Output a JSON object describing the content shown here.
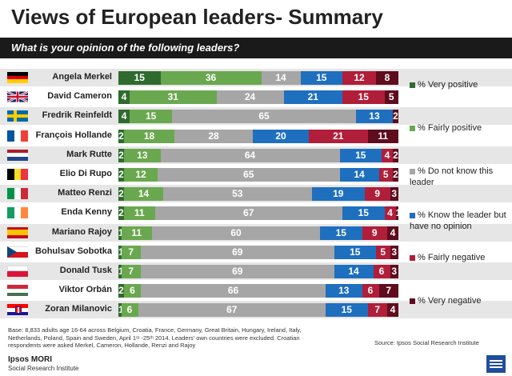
{
  "title": "Views of European leaders- Summary",
  "subtitle": "What is your opinion of the following leaders?",
  "chart_data": {
    "type": "bar",
    "stacked": true,
    "orientation": "horizontal",
    "categories": [
      "Angela Merkel",
      "David Cameron",
      "Fredrik Reinfeldt",
      "François Hollande",
      "Mark Rutte",
      "Elio Di Rupo",
      "Matteo Renzi",
      "Enda Kenny",
      "Mariano Rajoy",
      "Bohulsav Sobotka",
      "Donald Tusk",
      "Viktor Orbán",
      "Zoran Milanovic"
    ],
    "series": [
      {
        "name": "% Very positive",
        "color": "#2f6b2f",
        "values": [
          15,
          4,
          4,
          2,
          2,
          2,
          2,
          2,
          1,
          1,
          1,
          2,
          1
        ]
      },
      {
        "name": "% Fairly positive",
        "color": "#6aa84f",
        "values": [
          36,
          31,
          15,
          18,
          13,
          12,
          14,
          11,
          11,
          7,
          7,
          6,
          6
        ]
      },
      {
        "name": "% Do not know this leader",
        "color": "#a6a6a6",
        "values": [
          14,
          24,
          65,
          28,
          64,
          65,
          53,
          67,
          60,
          69,
          69,
          66,
          67
        ]
      },
      {
        "name": "% Know the leader but have no opinion",
        "color": "#1f6fbf",
        "values": [
          15,
          21,
          13,
          20,
          15,
          14,
          19,
          15,
          15,
          15,
          14,
          13,
          15
        ]
      },
      {
        "name": "% Fairly negative",
        "color": "#b01e3a",
        "values": [
          12,
          15,
          0,
          21,
          4,
          5,
          9,
          4,
          9,
          5,
          6,
          6,
          7
        ]
      },
      {
        "name": "% Very negative",
        "color": "#5e0c1e",
        "values": [
          8,
          5,
          2,
          11,
          2,
          2,
          3,
          1,
          4,
          3,
          3,
          7,
          4
        ]
      }
    ],
    "labels": [
      [
        "15",
        "36",
        "14",
        "15",
        "12",
        "8"
      ],
      [
        "4",
        "31",
        "24",
        "21",
        "15",
        "5"
      ],
      [
        "4",
        "15",
        "65",
        "13",
        "",
        "2"
      ],
      [
        "2",
        "18",
        "28",
        "20",
        "21",
        "11"
      ],
      [
        "2",
        "13",
        "64",
        "15",
        "4",
        "2"
      ],
      [
        "2",
        "12",
        "65",
        "14",
        "5",
        "2"
      ],
      [
        "2",
        "14",
        "53",
        "19",
        "9",
        "3"
      ],
      [
        "2",
        "11",
        "67",
        "15",
        "4",
        "1"
      ],
      [
        "1",
        "11",
        "60",
        "15",
        "9",
        "4"
      ],
      [
        "1",
        "7",
        "69",
        "15",
        "5",
        "3"
      ],
      [
        "1",
        "7",
        "69",
        "14",
        "6",
        "3"
      ],
      [
        "2",
        "6",
        "66",
        "13",
        "6",
        "7"
      ],
      [
        "1",
        "6",
        "67",
        "15",
        "7",
        "4"
      ]
    ]
  },
  "flags": [
    "de",
    "gb",
    "se",
    "fr",
    "nl",
    "be",
    "it",
    "ie",
    "es",
    "cz",
    "pl",
    "hu",
    "hr"
  ],
  "legend": [
    "% Very positive",
    "% Fairly positive",
    "% Do not know this leader",
    "% Know the leader but have no opinion",
    "% Fairly negative",
    "% Very negative"
  ],
  "footnote": "Base: 8,833 adults age  16-64 across  Belgium, Croatia, France, Germany, Great Britain, Hungary, Ireland, Italy, Netherlands, Poland, Spain and Sweden, April 1ˢᵗ -25ᵗʰ 2014. Leaders' own countries were excluded. Croatian respondents were asked Merkel, Cameron, Hollande, Renzi and Rajoy",
  "source": "Source: Ipsos Social Research Institute",
  "brand": "Ipsos MORI",
  "brand_sub": "Social Research Institute"
}
